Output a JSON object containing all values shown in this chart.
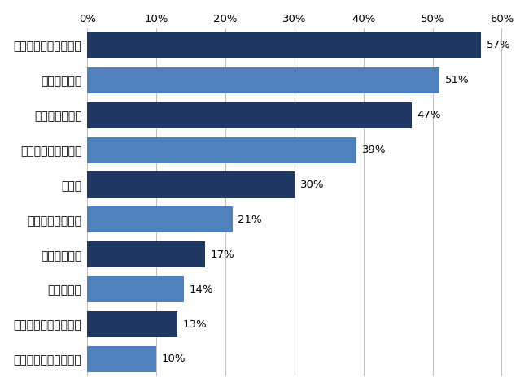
{
  "categories": [
    "自己モチベーション力",
    "多国籍環境への適応力",
    "経営スキル",
    "技術的スキル",
    "物事を先導する力",
    "語学力",
    "企業風土への適応力",
    "リーダーシップ",
    "問願解決能力",
    "コミュニケーション力"
  ],
  "values": [
    10,
    13,
    14,
    17,
    21,
    30,
    39,
    47,
    51,
    57
  ],
  "bar_colors": [
    "#4f81bd",
    "#1f3864",
    "#4f81bd",
    "#1f3864",
    "#4f81bd",
    "#1f3864",
    "#4f81bd",
    "#1f3864",
    "#4f81bd",
    "#1f3864"
  ],
  "labels": [
    "10%",
    "13%",
    "14%",
    "17%",
    "21%",
    "30%",
    "39%",
    "47%",
    "51%",
    "57%"
  ],
  "xlim": [
    0,
    62
  ],
  "xticks": [
    0,
    10,
    20,
    30,
    40,
    50,
    60
  ],
  "xtick_labels": [
    "0%",
    "10%",
    "20%",
    "30%",
    "40%",
    "50%",
    "60%"
  ],
  "background_color": "#ffffff",
  "bar_height": 0.75,
  "label_fontsize": 9.5,
  "tick_fontsize": 9.5,
  "ytick_fontsize": 10,
  "grid_color": "#c0c0c0"
}
